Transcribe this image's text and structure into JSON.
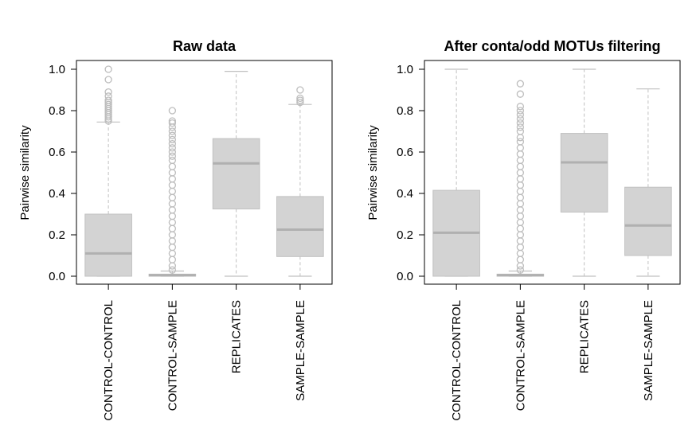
{
  "chart_data": [
    {
      "type": "box",
      "title": "Raw data",
      "ylabel": "Pairwise similarity",
      "ylim": [
        0,
        1
      ],
      "yticks": [
        "0.0",
        "0.2",
        "0.4",
        "0.6",
        "0.8",
        "1.0"
      ],
      "categories": [
        "CONTROL-CONTROL",
        "CONTROL-SAMPLE",
        "REPLICATES",
        "SAMPLE-SAMPLE"
      ],
      "boxes": [
        {
          "whisker_low": 0.0,
          "q1": 0.0,
          "median": 0.11,
          "q3": 0.3,
          "whisker_high": 0.745,
          "outliers": [
            0.75,
            0.76,
            0.77,
            0.78,
            0.79,
            0.8,
            0.81,
            0.82,
            0.83,
            0.84,
            0.85,
            0.87,
            0.89,
            0.95,
            1.0
          ]
        },
        {
          "whisker_low": 0.0,
          "q1": 0.0,
          "median": 0.005,
          "q3": 0.01,
          "whisker_high": 0.025,
          "outliers": [
            0.03,
            0.05,
            0.08,
            0.11,
            0.14,
            0.17,
            0.2,
            0.23,
            0.26,
            0.29,
            0.32,
            0.35,
            0.38,
            0.41,
            0.44,
            0.47,
            0.5,
            0.53,
            0.56,
            0.58,
            0.6,
            0.62,
            0.64,
            0.66,
            0.68,
            0.7,
            0.72,
            0.74,
            0.75,
            0.8
          ]
        },
        {
          "whisker_low": 0.0,
          "q1": 0.325,
          "median": 0.545,
          "q3": 0.665,
          "whisker_high": 0.99,
          "outliers": []
        },
        {
          "whisker_low": 0.0,
          "q1": 0.095,
          "median": 0.225,
          "q3": 0.385,
          "whisker_high": 0.83,
          "outliers": [
            0.84,
            0.85,
            0.86,
            0.9
          ]
        }
      ]
    },
    {
      "type": "box",
      "title": "After conta/odd MOTUs filtering",
      "ylabel": "Pairwise similarity",
      "ylim": [
        0,
        1
      ],
      "yticks": [
        "0.0",
        "0.2",
        "0.4",
        "0.6",
        "0.8",
        "1.0"
      ],
      "categories": [
        "CONTROL-CONTROL",
        "CONTROL-SAMPLE",
        "REPLICATES",
        "SAMPLE-SAMPLE"
      ],
      "boxes": [
        {
          "whisker_low": 0.0,
          "q1": 0.0,
          "median": 0.21,
          "q3": 0.415,
          "whisker_high": 1.0,
          "outliers": []
        },
        {
          "whisker_low": 0.0,
          "q1": 0.0,
          "median": 0.005,
          "q3": 0.01,
          "whisker_high": 0.025,
          "outliers": [
            0.03,
            0.05,
            0.08,
            0.11,
            0.14,
            0.17,
            0.2,
            0.23,
            0.26,
            0.29,
            0.32,
            0.35,
            0.38,
            0.41,
            0.44,
            0.47,
            0.5,
            0.53,
            0.56,
            0.59,
            0.62,
            0.65,
            0.67,
            0.7,
            0.72,
            0.74,
            0.76,
            0.78,
            0.8,
            0.82,
            0.88,
            0.93
          ]
        },
        {
          "whisker_low": 0.0,
          "q1": 0.31,
          "median": 0.55,
          "q3": 0.69,
          "whisker_high": 1.0,
          "outliers": []
        },
        {
          "whisker_low": 0.0,
          "q1": 0.1,
          "median": 0.245,
          "q3": 0.43,
          "whisker_high": 0.905,
          "outliers": []
        }
      ]
    }
  ],
  "colors": {
    "box_fill": "#d3d3d3",
    "box_stroke": "#c0c0c0",
    "median": "#b0b0b0",
    "whisker": "#c0c0c0",
    "outlier": "#bdbdbd",
    "frame": "#000000"
  }
}
